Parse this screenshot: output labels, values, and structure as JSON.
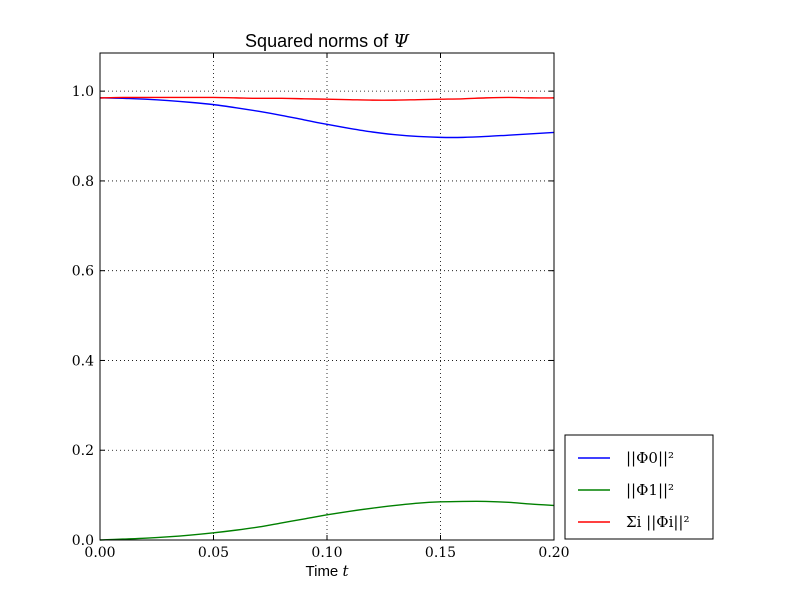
{
  "chart_data": {
    "type": "line",
    "title_text": "Squared norms of",
    "title_symbol": "Ψ",
    "xlabel_text": "Time",
    "xlabel_var": "t",
    "ylabel": "",
    "xlim": [
      0.0,
      0.2
    ],
    "ylim": [
      0.0,
      1.085
    ],
    "xticks": [
      "0.00",
      "0.05",
      "0.10",
      "0.15",
      "0.20"
    ],
    "yticks": [
      "0.0",
      "0.2",
      "0.4",
      "0.6",
      "0.8",
      "1.0"
    ],
    "grid": true,
    "legend_position": "outside-bottom-right",
    "x": [
      0.0,
      0.01,
      0.02,
      0.03,
      0.04,
      0.05,
      0.06,
      0.07,
      0.08,
      0.09,
      0.1,
      0.11,
      0.12,
      0.13,
      0.14,
      0.15,
      0.16,
      0.17,
      0.18,
      0.19,
      0.2
    ],
    "series": [
      {
        "name": "||Φ0||²",
        "color": "#0000ff",
        "values": [
          0.985,
          0.984,
          0.982,
          0.979,
          0.975,
          0.97,
          0.963,
          0.955,
          0.946,
          0.936,
          0.926,
          0.917,
          0.909,
          0.903,
          0.899,
          0.897,
          0.897,
          0.899,
          0.902,
          0.905,
          0.908
        ]
      },
      {
        "name": "||Φ1||²",
        "color": "#008000",
        "values": [
          0.0,
          0.002,
          0.004,
          0.007,
          0.011,
          0.016,
          0.022,
          0.029,
          0.038,
          0.047,
          0.056,
          0.064,
          0.071,
          0.077,
          0.082,
          0.085,
          0.086,
          0.086,
          0.084,
          0.08,
          0.077
        ]
      },
      {
        "name": "Σi ||Φi||²",
        "color": "#ff0000",
        "values": [
          0.985,
          0.986,
          0.986,
          0.986,
          0.986,
          0.986,
          0.985,
          0.984,
          0.984,
          0.983,
          0.982,
          0.981,
          0.98,
          0.98,
          0.981,
          0.982,
          0.983,
          0.985,
          0.986,
          0.985,
          0.985
        ]
      }
    ]
  }
}
